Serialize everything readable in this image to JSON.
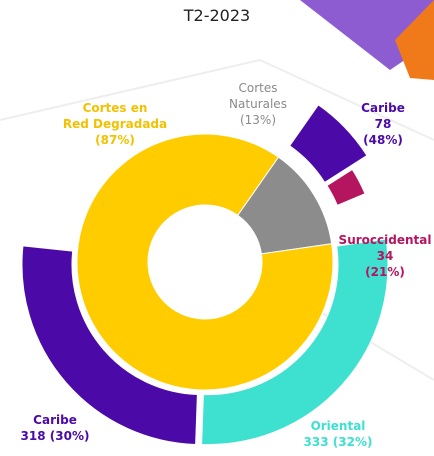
{
  "chart_data": {
    "type": "donut",
    "title": "T2-2023",
    "inner": {
      "categories": [
        "Cortes\nNaturales",
        "Cortes en\nRed Degradada"
      ],
      "values": [
        13,
        87
      ],
      "value_labels": [
        "(13%)",
        "(87%)"
      ],
      "colors": [
        "#8c8c8c",
        "#ffcc00"
      ],
      "children": [
        {
          "categories": [
            "Caribe",
            "Suroccidental"
          ],
          "values": [
            78,
            34
          ],
          "percents": [
            48,
            21
          ],
          "value_labels": [
            "78 (48%)",
            "34 (21%)"
          ],
          "colors": [
            "#4b0aa8",
            "#b5145e"
          ]
        },
        {
          "categories": [
            "Oriental",
            "Caribe"
          ],
          "values": [
            333,
            318
          ],
          "percents": [
            32,
            30
          ],
          "value_labels": [
            "333 (32%)",
            "318 (30%)"
          ],
          "colors": [
            "#3ee0d0",
            "#4b0aa8"
          ]
        }
      ]
    }
  }
}
